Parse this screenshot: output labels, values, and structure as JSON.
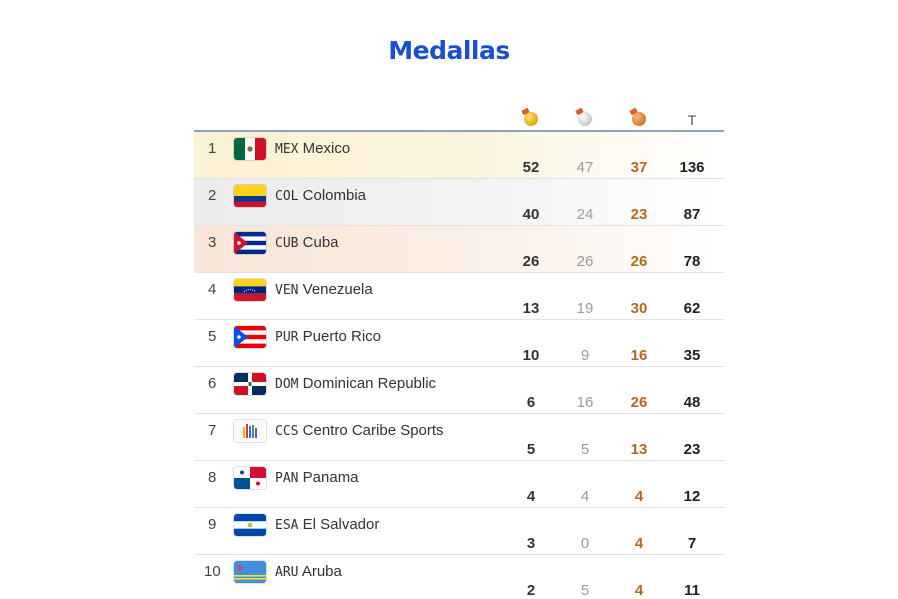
{
  "title": "Medallas",
  "header": {
    "total_label": "T",
    "icons": [
      "gold-medal-icon",
      "silver-medal-icon",
      "bronze-medal-icon"
    ]
  },
  "rows": [
    {
      "rank": "1",
      "code": "MEX",
      "name": "Mexico",
      "gold": "52",
      "silver": "47",
      "bronze": "37",
      "total": "136",
      "flag": "mexico"
    },
    {
      "rank": "2",
      "code": "COL",
      "name": "Colombia",
      "gold": "40",
      "silver": "24",
      "bronze": "23",
      "total": "87",
      "flag": "colombia"
    },
    {
      "rank": "3",
      "code": "CUB",
      "name": "Cuba",
      "gold": "26",
      "silver": "26",
      "bronze": "26",
      "total": "78",
      "flag": "cuba"
    },
    {
      "rank": "4",
      "code": "VEN",
      "name": "Venezuela",
      "gold": "13",
      "silver": "19",
      "bronze": "30",
      "total": "62",
      "flag": "venezuela"
    },
    {
      "rank": "5",
      "code": "PUR",
      "name": "Puerto Rico",
      "gold": "10",
      "silver": "9",
      "bronze": "16",
      "total": "35",
      "flag": "puerto-rico"
    },
    {
      "rank": "6",
      "code": "DOM",
      "name": "Dominican Republic",
      "gold": "6",
      "silver": "16",
      "bronze": "26",
      "total": "48",
      "flag": "dominican-republic"
    },
    {
      "rank": "7",
      "code": "CCS",
      "name": "Centro Caribe Sports",
      "gold": "5",
      "silver": "5",
      "bronze": "13",
      "total": "23",
      "flag": "centro-caribe-sports"
    },
    {
      "rank": "8",
      "code": "PAN",
      "name": "Panama",
      "gold": "4",
      "silver": "4",
      "bronze": "4",
      "total": "12",
      "flag": "panama"
    },
    {
      "rank": "9",
      "code": "ESA",
      "name": "El Salvador",
      "gold": "3",
      "silver": "0",
      "bronze": "4",
      "total": "7",
      "flag": "el-salvador"
    },
    {
      "rank": "10",
      "code": "ARU",
      "name": "Aruba",
      "gold": "2",
      "silver": "5",
      "bronze": "4",
      "total": "11",
      "flag": "aruba"
    }
  ],
  "colors": {
    "title": "#1a4fd0",
    "bronze_text": "#b06a1f",
    "silver_text": "#9a9a9a",
    "header_rule": "#8ea2c9"
  }
}
